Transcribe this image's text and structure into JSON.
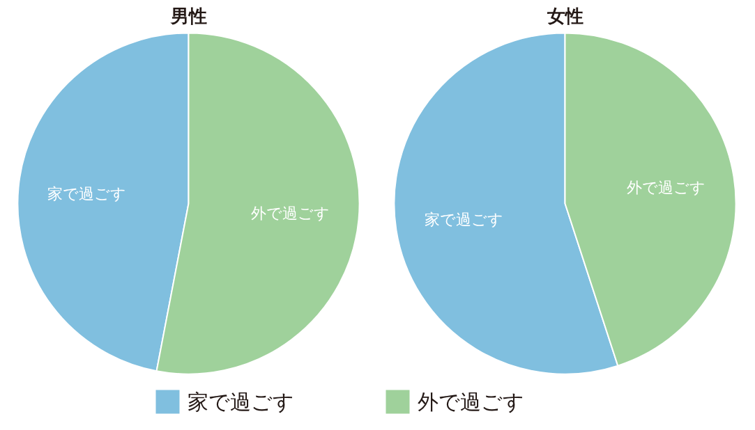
{
  "chart_data": [
    {
      "type": "pie",
      "title": "男性",
      "categories": [
        "家で過ごす",
        "外で過ごす"
      ],
      "values": [
        47,
        53
      ],
      "colors": [
        "#80bfdf",
        "#9fd19b"
      ],
      "legend": "bottom"
    },
    {
      "type": "pie",
      "title": "女性",
      "categories": [
        "家で過ごす",
        "外で過ごす"
      ],
      "values": [
        55,
        45
      ],
      "colors": [
        "#80bfdf",
        "#9fd19b"
      ]
    }
  ]
}
